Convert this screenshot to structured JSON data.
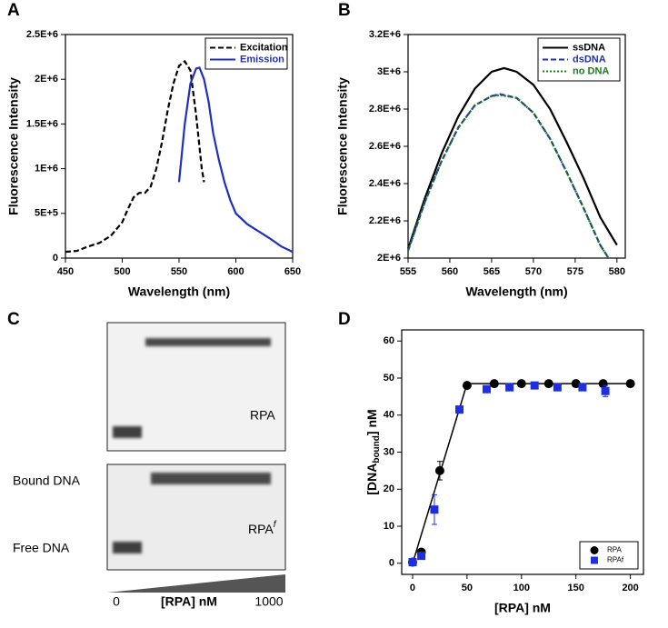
{
  "chart_data": [
    {
      "type": "line",
      "panel": "A",
      "xlabel": "Wavelength (nm)",
      "ylabel": "Fluorescence Intensity",
      "xlim": [
        450,
        650
      ],
      "xticks": [
        450,
        500,
        550,
        600,
        650
      ],
      "ylim": [
        0,
        2500000
      ],
      "yticks": [
        0,
        {
          "value": 500000,
          "label": "5E+5"
        },
        {
          "value": 1000000,
          "label": "1E+6"
        },
        {
          "value": 1500000,
          "label": "1.5E+6"
        },
        {
          "value": 2000000,
          "label": "2E+6"
        },
        {
          "value": 2500000,
          "label": "2.5E+6"
        }
      ],
      "legend": "upper right",
      "series": [
        {
          "name": "Excitation",
          "color": "#000000",
          "dash": "dashed",
          "x": [
            450,
            460,
            470,
            480,
            490,
            500,
            505,
            510,
            515,
            520,
            525,
            530,
            535,
            540,
            545,
            550,
            555,
            560,
            565,
            570,
            572
          ],
          "values": [
            70000,
            80000,
            130000,
            170000,
            250000,
            400000,
            550000,
            680000,
            730000,
            730000,
            800000,
            1000000,
            1300000,
            1650000,
            1950000,
            2150000,
            2200000,
            2100000,
            1600000,
            1000000,
            850000
          ]
        },
        {
          "name": "Emission",
          "color": "#1f2fbf",
          "dash": "solid",
          "x": [
            550,
            555,
            560,
            565,
            568,
            572,
            576,
            580,
            585,
            590,
            595,
            600,
            610,
            620,
            630,
            640,
            650
          ],
          "values": [
            850000,
            1500000,
            1950000,
            2120000,
            2130000,
            2000000,
            1750000,
            1400000,
            1100000,
            850000,
            650000,
            500000,
            380000,
            300000,
            220000,
            130000,
            70000
          ]
        }
      ]
    },
    {
      "type": "line",
      "panel": "B",
      "xlabel": "Wavelength (nm)",
      "ylabel": "Fluorescence Intensity",
      "xlim": [
        555,
        581
      ],
      "xticks": [
        555,
        560,
        565,
        570,
        575,
        580
      ],
      "ylim": [
        2000000,
        3200000
      ],
      "yticks": [
        {
          "value": 2000000,
          "label": "2E+6"
        },
        {
          "value": 2200000,
          "label": "2.2E+6"
        },
        {
          "value": 2400000,
          "label": "2.4E+6"
        },
        {
          "value": 2600000,
          "label": "2.6E+6"
        },
        {
          "value": 2800000,
          "label": "2.8E+6"
        },
        {
          "value": 3000000,
          "label": "3E+6"
        },
        {
          "value": 3200000,
          "label": "3.2E+6"
        }
      ],
      "legend": "upper right",
      "series": [
        {
          "name": "ssDNA",
          "color": "#000000",
          "dash": "solid",
          "x": [
            555,
            557,
            559,
            561,
            563,
            565,
            566.5,
            568,
            570,
            572,
            574,
            576,
            578,
            580
          ],
          "values": [
            2050000,
            2320000,
            2560000,
            2760000,
            2910000,
            3000000,
            3020000,
            3000000,
            2930000,
            2800000,
            2620000,
            2430000,
            2220000,
            2070000
          ]
        },
        {
          "name": "dsDNA",
          "color": "#1f2fbf",
          "dash": "dashed",
          "x": [
            555,
            557,
            559,
            561,
            563,
            565,
            566,
            568,
            570,
            572,
            574,
            576,
            578,
            579
          ],
          "values": [
            2040000,
            2300000,
            2520000,
            2700000,
            2820000,
            2870000,
            2880000,
            2860000,
            2780000,
            2640000,
            2460000,
            2270000,
            2070000,
            2000000
          ]
        },
        {
          "name": "no DNA",
          "color": "#1f7a1f",
          "dash": "dotted",
          "x": [
            555,
            557,
            559,
            561,
            563,
            565,
            566,
            568,
            570,
            572,
            574,
            576,
            578,
            579
          ],
          "values": [
            2040000,
            2300000,
            2520000,
            2700000,
            2820000,
            2870000,
            2875000,
            2860000,
            2780000,
            2640000,
            2460000,
            2270000,
            2070000,
            2000000
          ]
        }
      ]
    },
    {
      "type": "scatter",
      "panel": "D",
      "xlabel": "[RPA] nM",
      "ylabel": {
        "text": "[DNA",
        "sub": "bound",
        "tail": "] nM"
      },
      "xlim": [
        -10,
        212
      ],
      "xticks": [
        0,
        50,
        100,
        150,
        200
      ],
      "ylim": [
        -3,
        63
      ],
      "yticks": [
        0,
        10,
        20,
        30,
        40,
        50,
        60
      ],
      "legend": "lower right",
      "series": [
        {
          "name": "RPA",
          "color": "#000000",
          "marker": "circle",
          "x": [
            0,
            8,
            25,
            50,
            75,
            100,
            125,
            150,
            175,
            200
          ],
          "values": [
            0.3,
            3,
            25,
            48,
            48.5,
            48.5,
            48.5,
            48.5,
            48.5,
            48.5
          ],
          "errors": [
            0.5,
            0.5,
            2.5,
            0.5,
            0.5,
            0.5,
            0.5,
            0.5,
            0.5,
            0.5
          ]
        },
        {
          "name": "RPAf",
          "color": "#1f2fdf",
          "marker": "square",
          "x": [
            0,
            8,
            20,
            43,
            68,
            89,
            112,
            133,
            156,
            177
          ],
          "values": [
            0.3,
            2,
            14.5,
            41.5,
            47,
            47.5,
            48,
            47.5,
            47.5,
            46.5
          ],
          "errors": [
            0.5,
            0.5,
            4,
            0.5,
            0.8,
            0.5,
            0.5,
            0.5,
            0.5,
            1.5
          ]
        }
      ],
      "fit": {
        "color": "#000000",
        "x": [
          0,
          50,
          200
        ],
        "values": [
          0,
          48.5,
          48.5
        ]
      }
    }
  ],
  "gel": {
    "panel": "C",
    "label_top": "RPA",
    "label_bottom": {
      "text": "RPA",
      "sup": "f"
    },
    "bound": "Bound DNA",
    "free": "Free DNA",
    "start": "0",
    "end": "1000",
    "axis": "[RPA] nM"
  }
}
